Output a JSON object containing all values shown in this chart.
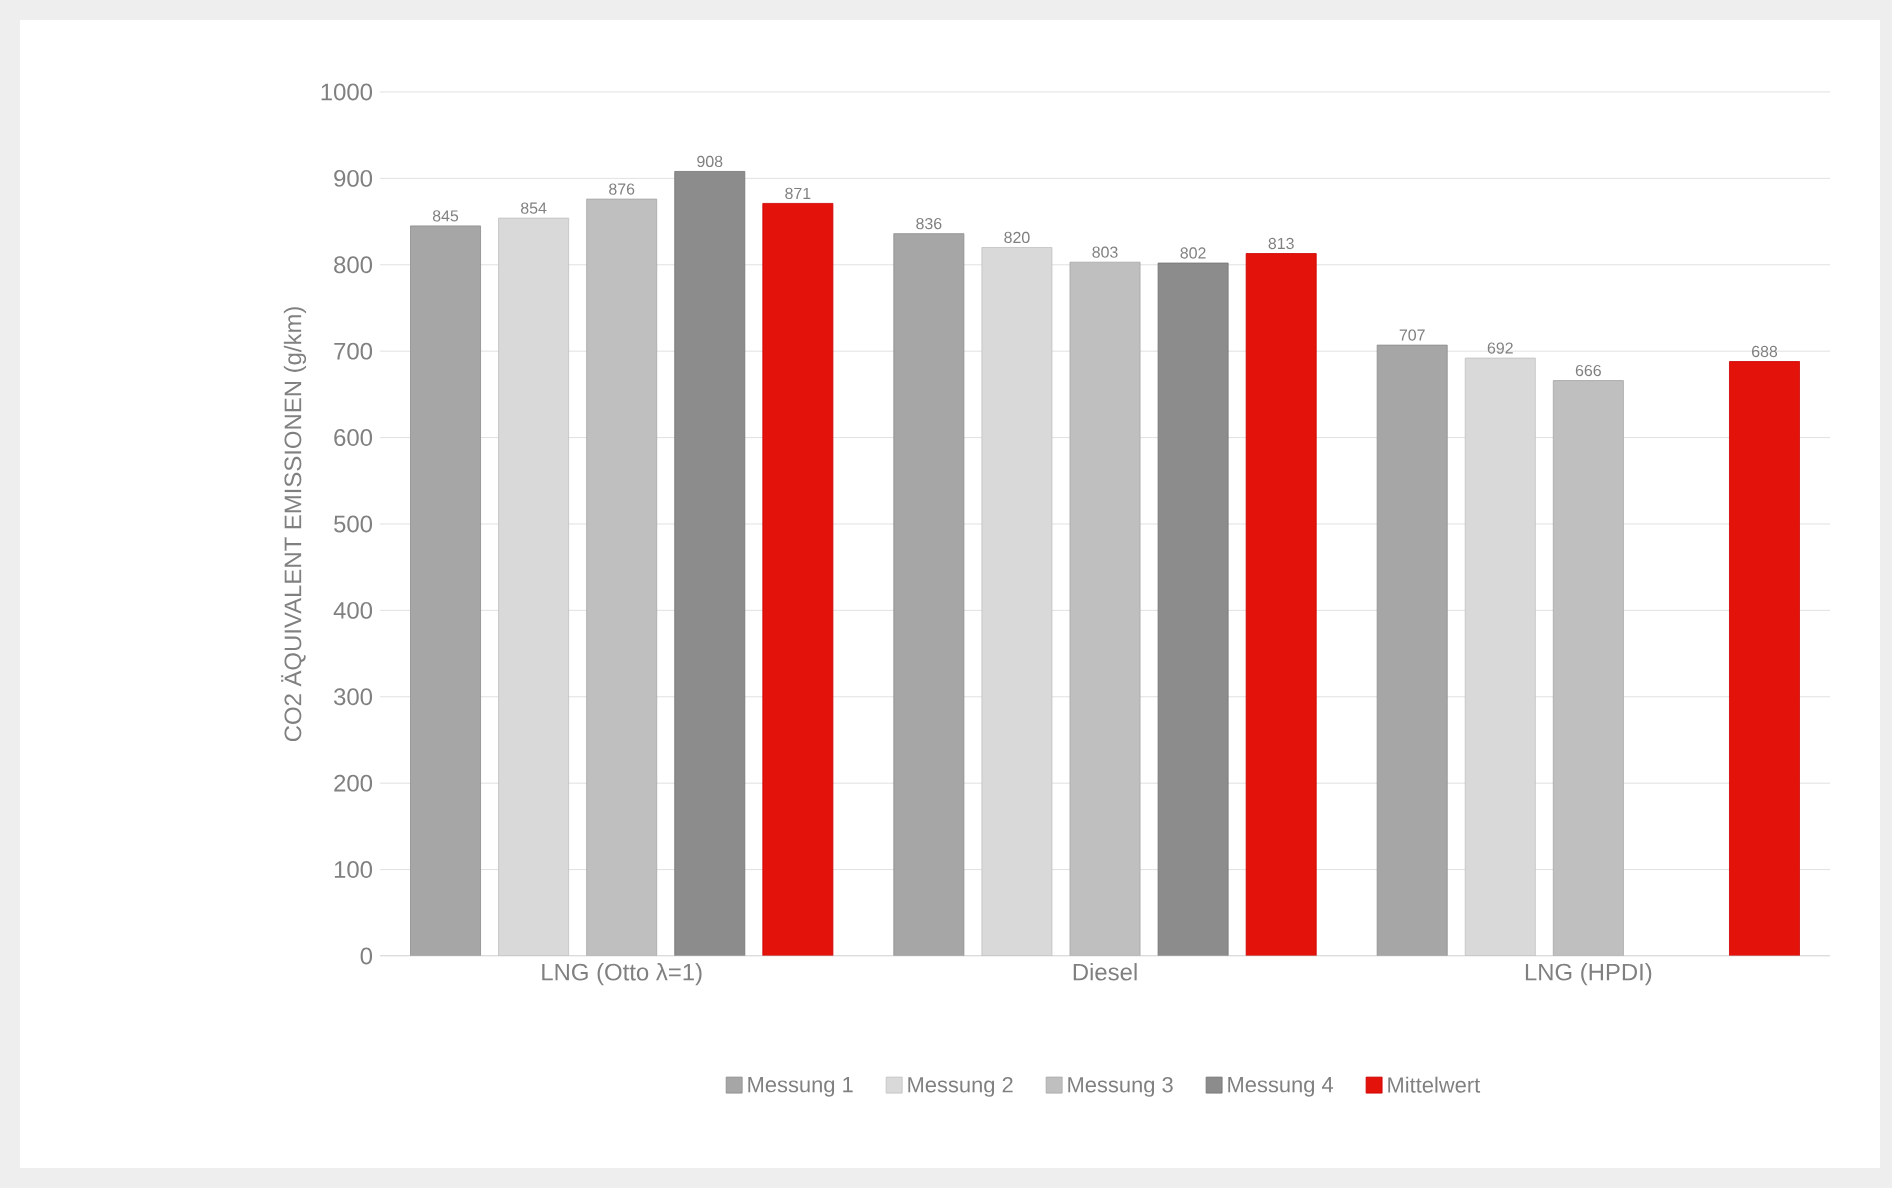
{
  "chart_data": {
    "type": "bar",
    "ylabel": "CO2 ÄQUIVALENT EMISSIONEN (g/km)",
    "categories": [
      "LNG (Otto λ=1)",
      "Diesel",
      "LNG (HPDI)"
    ],
    "series": [
      {
        "name": "Messung 1",
        "color": "#a6a6a6",
        "values": [
          845,
          836,
          707
        ]
      },
      {
        "name": "Messung 2",
        "color": "#d9d9d9",
        "values": [
          854,
          820,
          692
        ]
      },
      {
        "name": "Messung 3",
        "color": "#bfbfbf",
        "values": [
          876,
          803,
          666
        ]
      },
      {
        "name": "Messung 4",
        "color": "#8c8c8c",
        "values": [
          908,
          802,
          null
        ]
      },
      {
        "name": "Mittelwert",
        "color": "#e3120b",
        "values": [
          871,
          813,
          688
        ]
      }
    ],
    "ylim": [
      0,
      1000
    ],
    "yticks": [
      0,
      100,
      200,
      300,
      400,
      500,
      600,
      700,
      800,
      900,
      1000
    ],
    "grid": "y",
    "legend": "bottom",
    "data_labels": true
  }
}
